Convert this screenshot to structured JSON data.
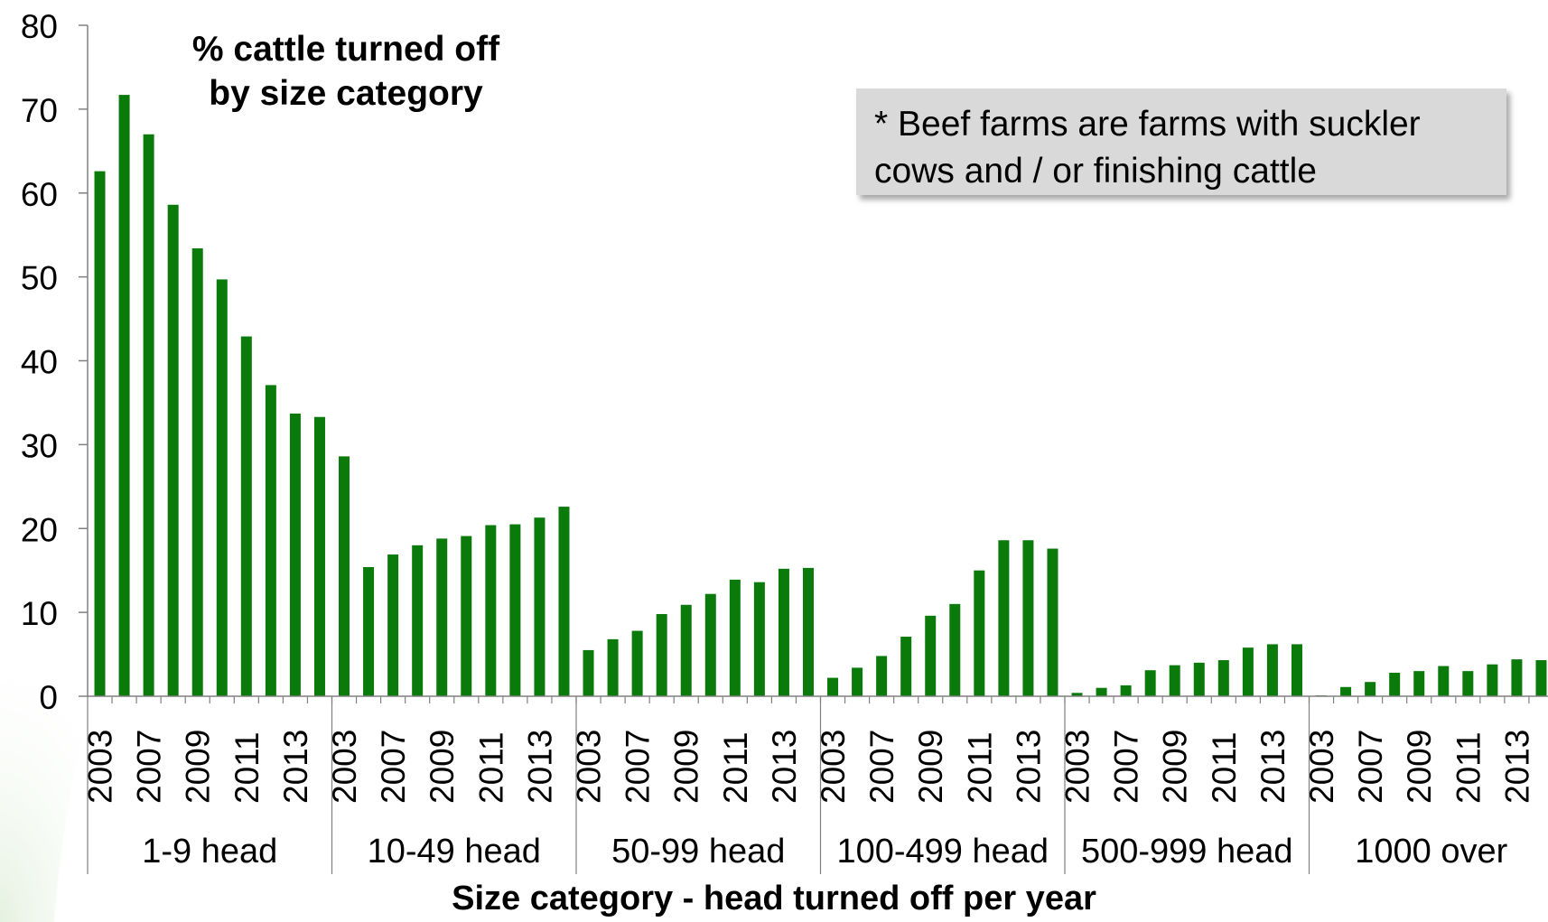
{
  "chart_data": {
    "type": "bar",
    "title": "% cattle turned off by size category",
    "xlabel": "Size category - head turned off per year",
    "ylabel": "",
    "ylim": [
      0,
      80
    ],
    "yticks": [
      0,
      10,
      20,
      30,
      40,
      50,
      60,
      70,
      80
    ],
    "year_labels": [
      "2003",
      "2007",
      "2009",
      "2011",
      "2013"
    ],
    "bar_color": "#0a7a0a",
    "grid": false,
    "annotation": "* Beef farms are farms with suckler cows and / or finishing cattle",
    "groups": [
      {
        "name": "1-9 head",
        "values": [
          62.6,
          71.7,
          67.0,
          58.6,
          53.4,
          49.7,
          42.9,
          37.1,
          33.7,
          33.3
        ]
      },
      {
        "name": "10-49 head",
        "values": [
          28.6,
          15.4,
          16.9,
          18.0,
          18.8,
          19.1,
          20.4,
          20.5,
          21.3,
          22.6
        ]
      },
      {
        "name": "50-99 head",
        "values": [
          5.5,
          6.8,
          7.8,
          9.8,
          10.9,
          12.2,
          13.9,
          13.6,
          15.2,
          15.3
        ]
      },
      {
        "name": "100-499 head",
        "values": [
          2.2,
          3.4,
          4.8,
          7.1,
          9.6,
          11.0,
          15.0,
          18.6,
          18.6,
          17.6
        ]
      },
      {
        "name": "500-999 head",
        "values": [
          0.4,
          1.0,
          1.3,
          3.1,
          3.7,
          4.0,
          4.3,
          5.8,
          6.2,
          6.2
        ]
      },
      {
        "name": "1000 over",
        "values": [
          0.1,
          1.1,
          1.7,
          2.8,
          3.0,
          3.6,
          3.0,
          3.8,
          4.4,
          4.3
        ]
      }
    ]
  }
}
